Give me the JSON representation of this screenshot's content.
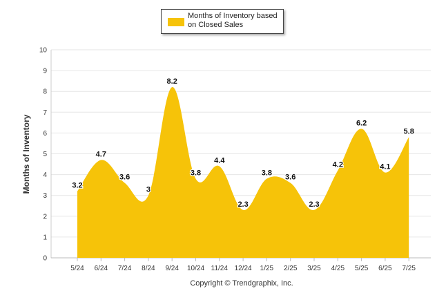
{
  "chart_data": {
    "type": "area",
    "title": "",
    "xlabel": "",
    "ylabel": "Months of Inventory",
    "categories": [
      "5/24",
      "6/24",
      "7/24",
      "8/24",
      "9/24",
      "10/24",
      "11/24",
      "12/24",
      "1/25",
      "2/25",
      "3/25",
      "4/25",
      "5/25",
      "6/25",
      "7/25"
    ],
    "series": [
      {
        "name_lines": [
          "Months of Inventory based",
          "on Closed Sales"
        ],
        "values": [
          3.2,
          4.7,
          3.6,
          3,
          8.2,
          3.8,
          4.4,
          2.3,
          3.8,
          3.6,
          2.3,
          4.2,
          6.2,
          4.1,
          5.8
        ],
        "labels": [
          "3.2",
          "4.7",
          "3.6",
          "3",
          "8.2",
          "3.8",
          "4.4",
          "2.3",
          "3.8",
          "3.6",
          "2.3",
          "4.2",
          "6.2",
          "4.1",
          "5.8"
        ],
        "color": "#f6c309"
      }
    ],
    "ylim": [
      0,
      10
    ],
    "yticks": [
      "0",
      "1",
      "2",
      "3",
      "4",
      "5",
      "6",
      "7",
      "8",
      "9",
      "10"
    ],
    "grid": true,
    "legend_position": "top-center",
    "footer": "Copyright © Trendgraphix, Inc."
  }
}
